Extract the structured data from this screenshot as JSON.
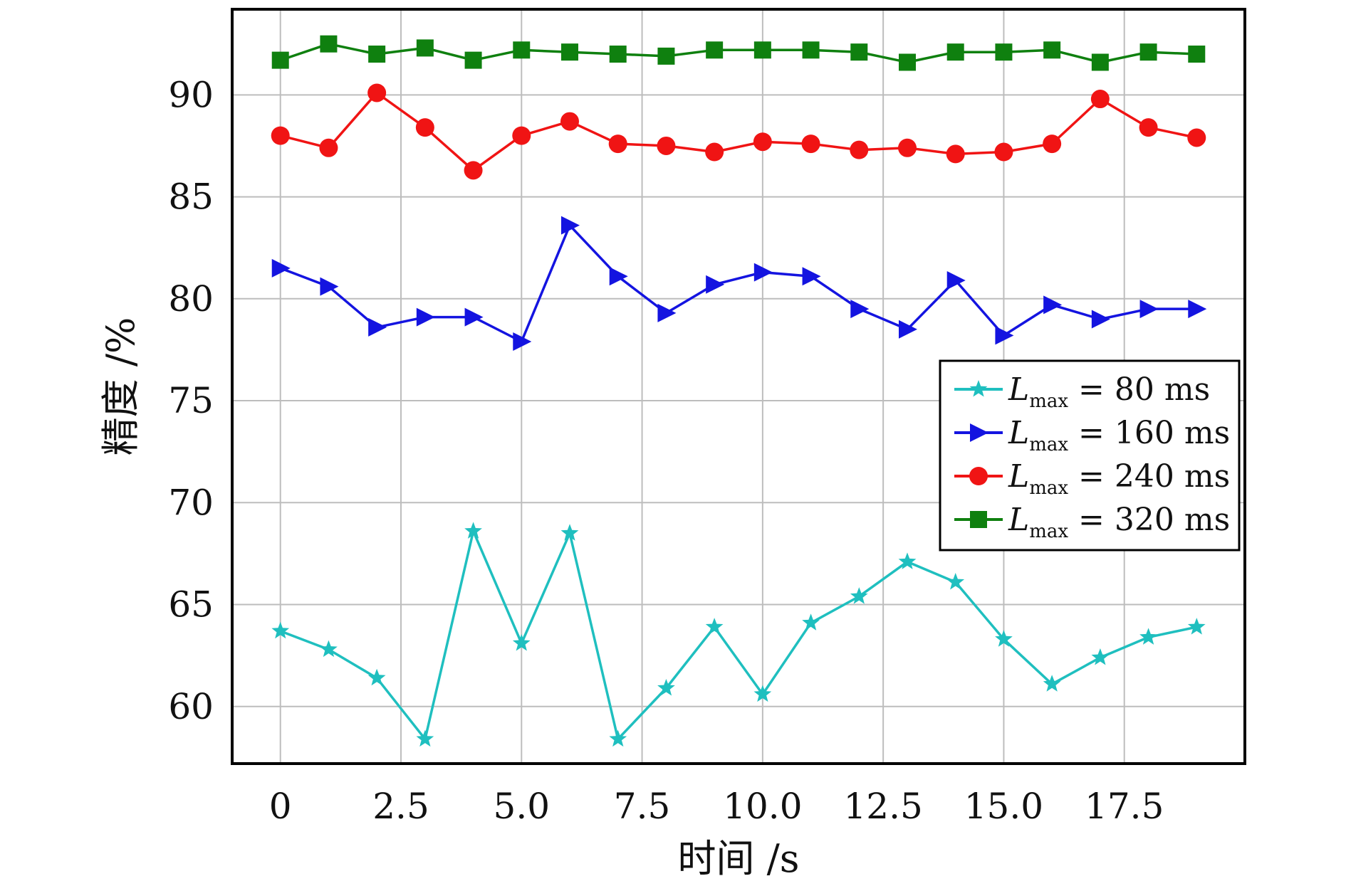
{
  "chart_data": {
    "type": "line",
    "xlabel": "时间 /s",
    "ylabel": "精度 /%",
    "x_ticks": [
      "0",
      "2.5",
      "5.0",
      "7.5",
      "10.0",
      "12.5",
      "15.0",
      "17.5"
    ],
    "x_tick_values": [
      0,
      2.5,
      5.0,
      7.5,
      10.0,
      12.5,
      15.0,
      17.5
    ],
    "y_ticks": [
      "60",
      "65",
      "70",
      "75",
      "80",
      "85",
      "90"
    ],
    "y_tick_values": [
      60,
      65,
      70,
      75,
      80,
      85,
      90
    ],
    "xlim": [
      -1,
      20
    ],
    "ylim": [
      57.2,
      94.2
    ],
    "grid": true,
    "legend_position": "right",
    "x": [
      0,
      1,
      2,
      3,
      4,
      5,
      6,
      7,
      8,
      9,
      10,
      11,
      12,
      13,
      14,
      15,
      16,
      17,
      18,
      19
    ],
    "series": [
      {
        "name": "L_max = 80 ms",
        "legend_symbol": "L",
        "legend_subscript": "max",
        "legend_value": "= 80 ms",
        "color": "#1fbfbf",
        "marker": "star",
        "values": [
          63.7,
          62.8,
          61.4,
          58.4,
          68.6,
          63.1,
          68.5,
          58.4,
          60.9,
          63.9,
          60.6,
          64.1,
          65.4,
          67.1,
          66.1,
          63.3,
          61.1,
          62.4,
          63.4,
          63.9
        ]
      },
      {
        "name": "L_max = 160 ms",
        "legend_symbol": "L",
        "legend_subscript": "max",
        "legend_value": "= 160 ms",
        "color": "#1414e0",
        "marker": "triangle-right",
        "values": [
          81.5,
          80.6,
          78.6,
          79.1,
          79.1,
          77.9,
          83.6,
          81.1,
          79.3,
          80.7,
          81.3,
          81.1,
          79.5,
          78.5,
          80.9,
          78.2,
          79.7,
          79.0,
          79.5,
          79.5
        ]
      },
      {
        "name": "L_max = 240 ms",
        "legend_symbol": "L",
        "legend_subscript": "max",
        "legend_value": "= 240 ms",
        "color": "#f01414",
        "marker": "circle",
        "values": [
          88.0,
          87.4,
          90.1,
          88.4,
          86.3,
          88.0,
          88.7,
          87.6,
          87.5,
          87.2,
          87.7,
          87.6,
          87.3,
          87.4,
          87.1,
          87.2,
          87.6,
          89.8,
          88.4,
          87.9
        ]
      },
      {
        "name": "L_max = 320 ms",
        "legend_symbol": "L",
        "legend_subscript": "max",
        "legend_value": "= 320 ms",
        "color": "#0f800f",
        "marker": "square",
        "values": [
          91.7,
          92.5,
          92.0,
          92.3,
          91.7,
          92.2,
          92.1,
          92.0,
          91.9,
          92.2,
          92.2,
          92.2,
          92.1,
          91.6,
          92.1,
          92.1,
          92.2,
          91.6,
          92.1,
          92.0
        ]
      }
    ]
  }
}
